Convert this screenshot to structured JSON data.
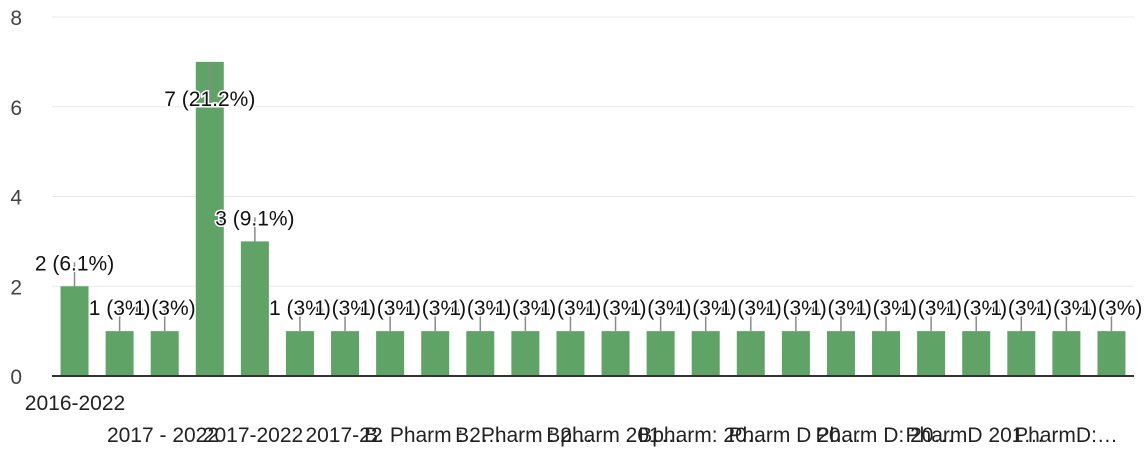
{
  "chart_data": {
    "type": "bar",
    "categories": [
      "2016-2022",
      "2017 - 2022",
      "",
      "2017-2022",
      "",
      "2017-22",
      "",
      "B. Pharm : 2…",
      "",
      "B. Pharm : 2…",
      "",
      "Bpharm 201…",
      "",
      "Bpharm: 20…",
      "",
      "Pharm D 20…",
      "",
      "Pharm D: 20…",
      "",
      "PharmD 201…",
      "",
      "PharmD:…",
      "",
      ""
    ],
    "values": [
      2,
      1,
      1,
      7,
      3,
      1,
      1,
      1,
      1,
      1,
      1,
      1,
      1,
      1,
      1,
      1,
      1,
      1,
      1,
      1,
      1,
      1,
      1,
      1
    ],
    "data_labels": [
      "2 (6.1%)",
      "1 (3%)",
      "1 (3%)",
      "7 (21.2%)",
      "3 (9.1%)",
      "1 (3%)",
      "1 (3%)",
      "1 (3%)",
      "1 (3%)",
      "1 (3%)",
      "1 (3%)",
      "1 (3%)",
      "1 (3%)",
      "1 (3%)",
      "1 (3%)",
      "1 (3%)",
      "1 (3%)",
      "1 (3%)",
      "1 (3%)",
      "1 (3%)",
      "1 (3%)",
      "1 (3%)",
      "1 (3%)",
      "1 (3%)"
    ],
    "yticks": [
      "0",
      "2",
      "4",
      "6",
      "8"
    ],
    "ylim": [
      0,
      8
    ],
    "grid": true,
    "bar_color": "#5fa466",
    "leader_color": "#8a8a8a",
    "title": "",
    "xlabel": "",
    "ylabel": ""
  }
}
